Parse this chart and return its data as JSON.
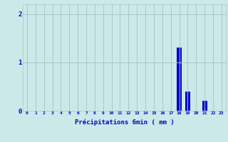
{
  "hours": [
    0,
    1,
    2,
    3,
    4,
    5,
    6,
    7,
    8,
    9,
    10,
    11,
    12,
    13,
    14,
    15,
    16,
    17,
    18,
    19,
    20,
    21,
    22,
    23
  ],
  "values": [
    0,
    0,
    0,
    0,
    0,
    0,
    0,
    0,
    0,
    0,
    0,
    0,
    0,
    0,
    0,
    0,
    0,
    0,
    1.3,
    0.4,
    0.0,
    0.2,
    0,
    0
  ],
  "bar_color": "#0000cc",
  "background_color": "#cce8e8",
  "grid_color": "#aac8c8",
  "xlabel": "Précipitations 6min ( mm )",
  "xlabel_color": "#0000cc",
  "tick_color": "#0000cc",
  "ylabel_ticks": [
    0,
    1,
    2
  ],
  "ylim": [
    0,
    2.2
  ],
  "xlim": [
    -0.5,
    23.5
  ],
  "bar_width": 0.6
}
